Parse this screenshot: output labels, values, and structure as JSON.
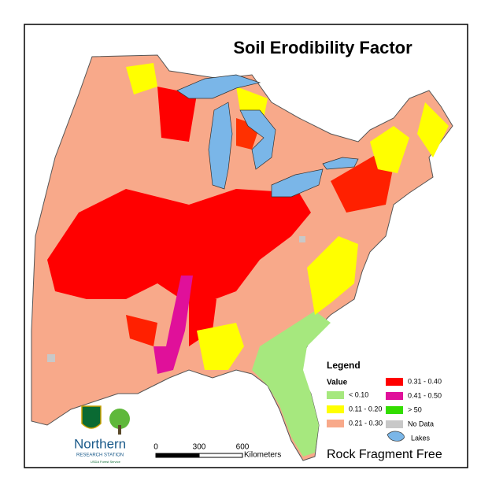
{
  "title": "Soil Erodibility Factor",
  "subtitle": "Rock Fragment Free",
  "legend": {
    "title": "Legend",
    "heading": "Value",
    "items": [
      {
        "label": "< 0.10",
        "color": "#a6e87e"
      },
      {
        "label": "0.11 - 0.20",
        "color": "#ffff00"
      },
      {
        "label": "0.21 - 0.30",
        "color": "#f8a98a"
      },
      {
        "label": "0.31 - 0.40",
        "color": "#ff0000"
      },
      {
        "label": "0.41 - 0.50",
        "color": "#e0109a"
      },
      {
        "label": "> 50",
        "color": "#33dd00"
      },
      {
        "label": "No Data",
        "color": "#c8c8c8"
      }
    ],
    "lakes": "Lakes"
  },
  "scale": {
    "labels": [
      "0",
      "300",
      "600"
    ],
    "unit": "Kilometers"
  },
  "logo": {
    "name": "Northern",
    "station": "RESEARCH STATION",
    "agency": "USDA Forest Service"
  }
}
